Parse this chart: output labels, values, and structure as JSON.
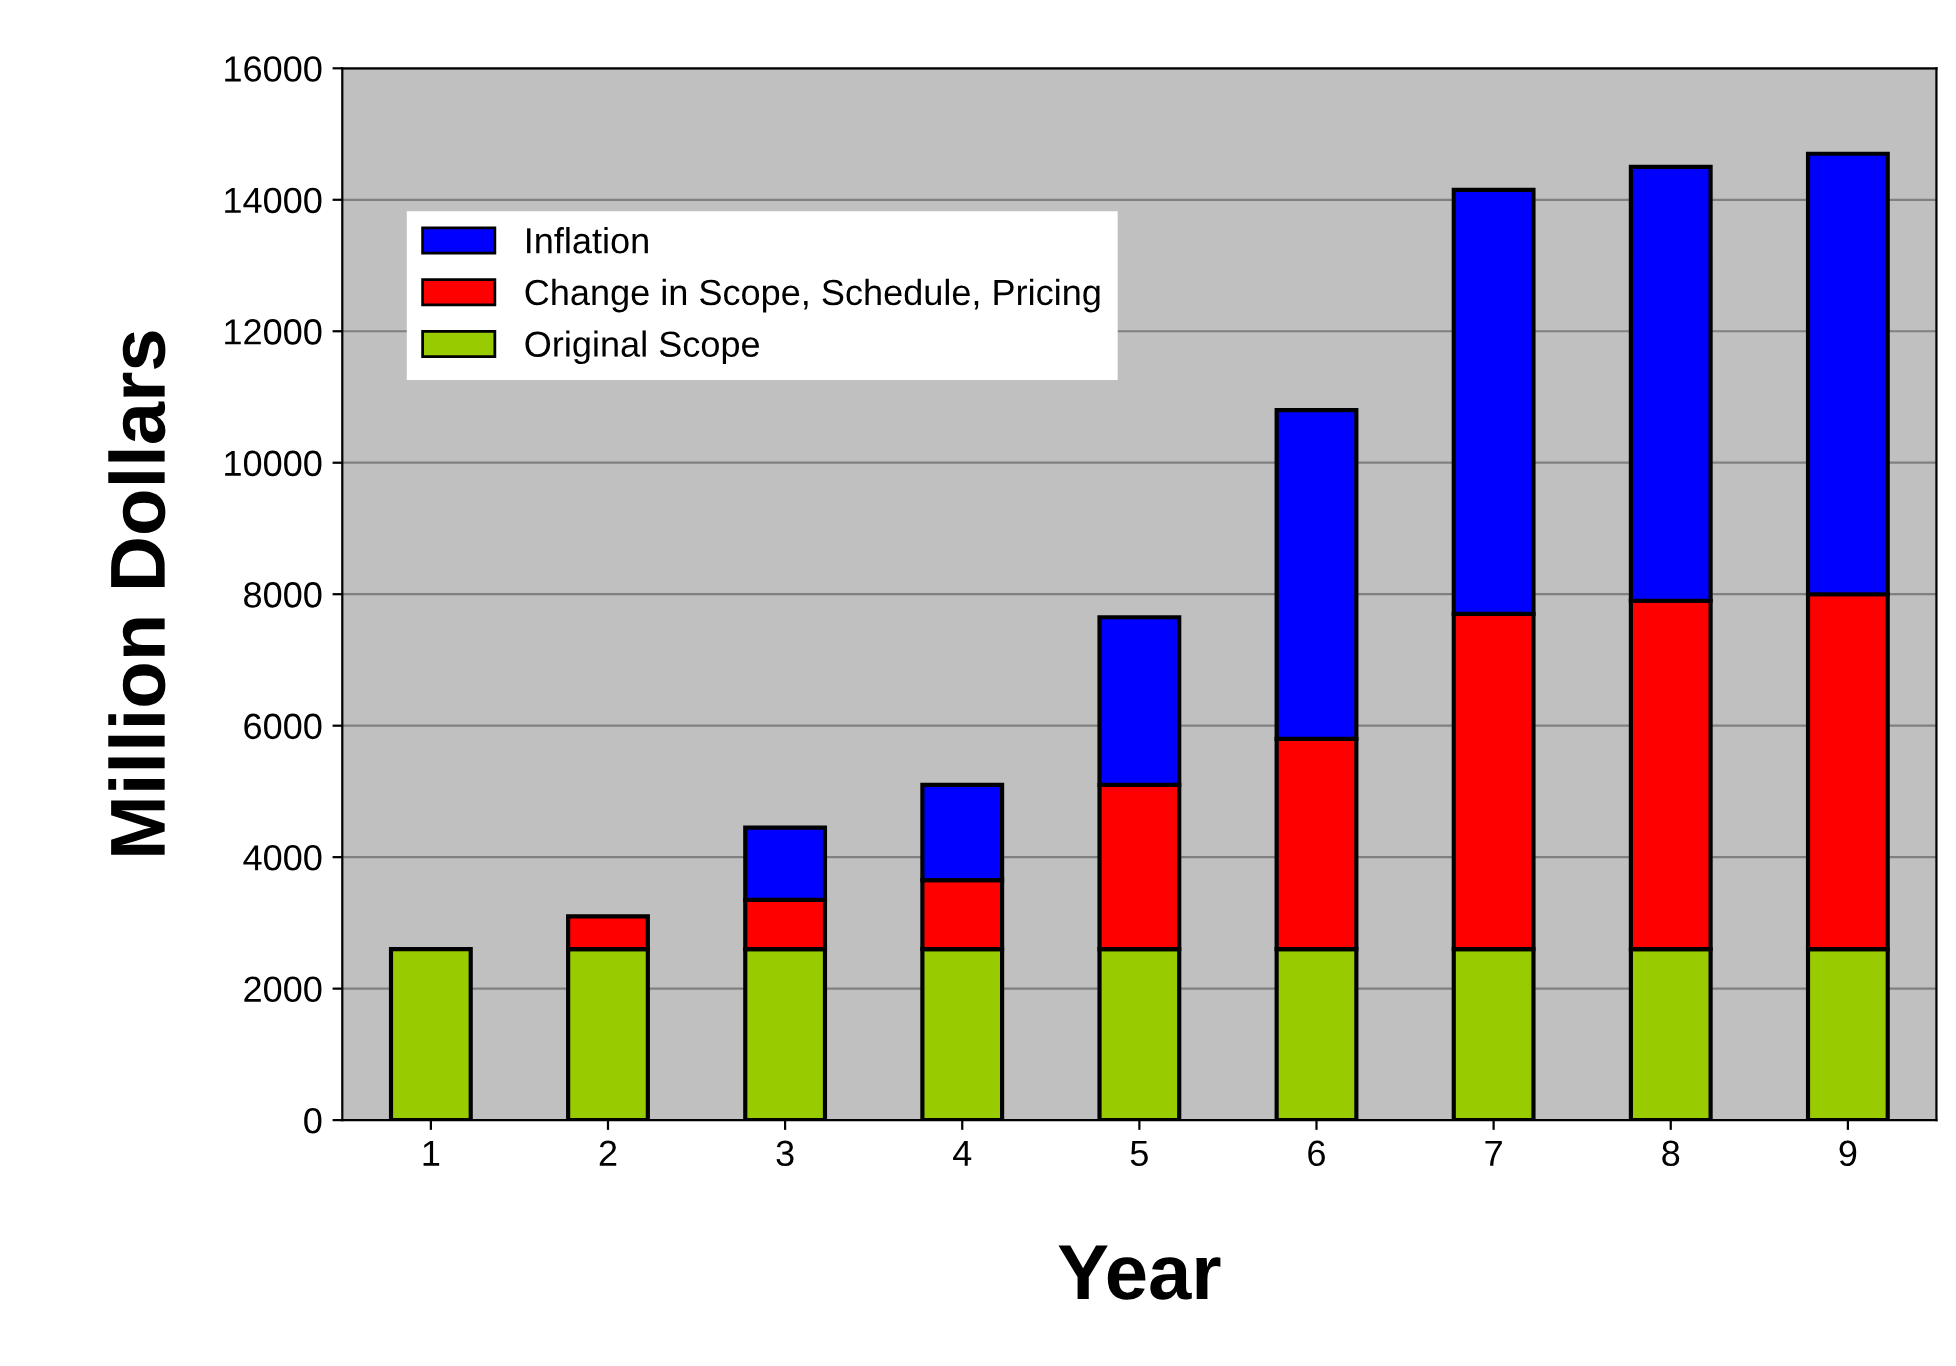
{
  "chart_data": {
    "type": "bar",
    "stacked": true,
    "xlabel": "Year",
    "ylabel": "Million Dollars",
    "categories": [
      "1",
      "2",
      "3",
      "4",
      "5",
      "6",
      "7",
      "8",
      "9"
    ],
    "series": [
      {
        "name": "Original Scope",
        "color": "#99cc00",
        "values": [
          2600,
          2600,
          2600,
          2600,
          2600,
          2600,
          2600,
          2600,
          2600
        ]
      },
      {
        "name": "Change in Scope, Schedule, Pricing",
        "color": "#ff0000",
        "values": [
          null,
          500,
          750,
          1050,
          2500,
          3200,
          5100,
          5300,
          5400
        ]
      },
      {
        "name": "Inflation",
        "color": "#0000ff",
        "values": [
          null,
          null,
          1100,
          1450,
          2550,
          5000,
          6450,
          6600,
          6700
        ]
      }
    ],
    "ylim": [
      0,
      16000
    ],
    "yticks": [
      0,
      2000,
      4000,
      6000,
      8000,
      10000,
      12000,
      14000,
      16000
    ],
    "grid": "y",
    "legend": "top left"
  }
}
